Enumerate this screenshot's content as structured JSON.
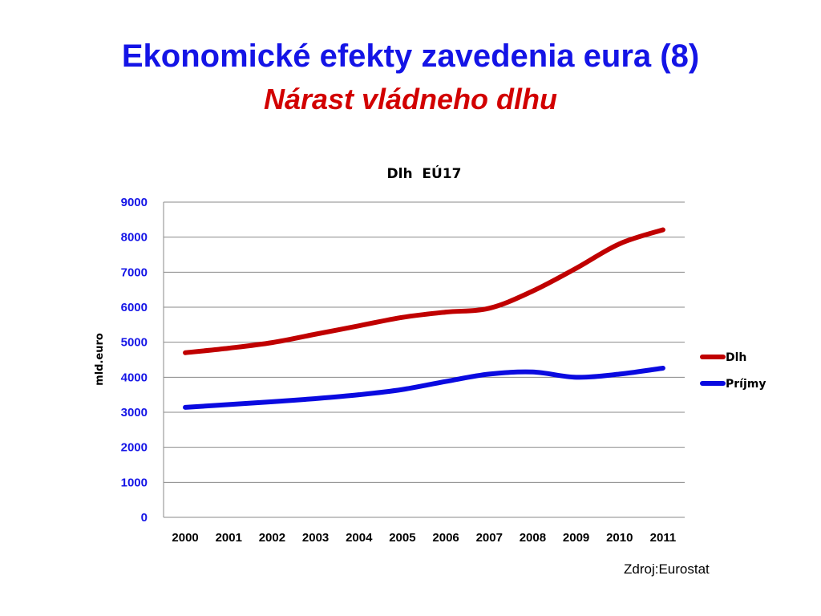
{
  "slide": {
    "title": "Ekonomické efekty zavedenia eura (8)",
    "subtitle": "Nárast vládneho dlhu",
    "source": "Zdroj:Eurostat"
  },
  "colors": {
    "title": "#1414e6",
    "subtitle": "#d20000",
    "y_ticks": "#1414e6",
    "x_ticks": "#000000",
    "grid": "#888888"
  },
  "chart_data": {
    "type": "line",
    "title": "Dlh  EÚ17",
    "xlabel": "",
    "ylabel": "mld.euro",
    "x": [
      "2000",
      "2001",
      "2002",
      "2003",
      "2004",
      "2005",
      "2006",
      "2007",
      "2008",
      "2009",
      "2010",
      "2011"
    ],
    "ylim": [
      0,
      9000
    ],
    "yticks": [
      "0",
      "1000",
      "2000",
      "3000",
      "4000",
      "5000",
      "6000",
      "7000",
      "8000",
      "9000"
    ],
    "grid": true,
    "legend_position": "right",
    "series": [
      {
        "name": "Dlh",
        "color": "#c00000",
        "values": [
          4700,
          4830,
          4990,
          5230,
          5470,
          5710,
          5860,
          5970,
          6460,
          7110,
          7810,
          8210
        ]
      },
      {
        "name": "Príjmy",
        "color": "#0a0ae0",
        "values": [
          3140,
          3220,
          3300,
          3390,
          3500,
          3650,
          3880,
          4090,
          4150,
          4000,
          4090,
          4260
        ]
      }
    ]
  }
}
